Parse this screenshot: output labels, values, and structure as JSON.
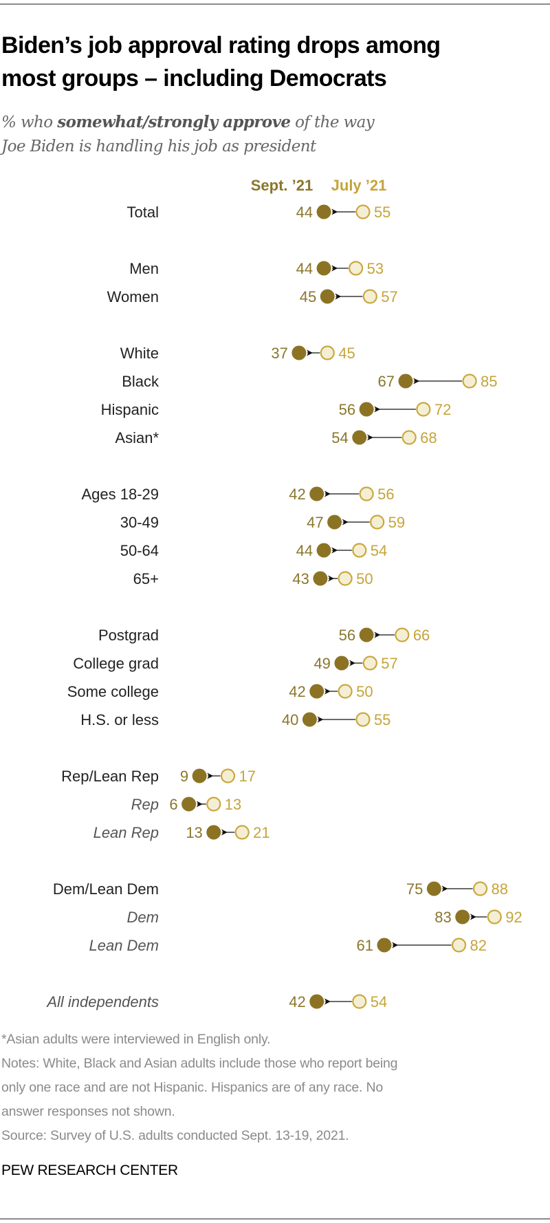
{
  "title_line1": "Biden’s job approval rating drops among",
  "title_line2": "most groups – including Democrats",
  "subtitle": {
    "pre": "% who ",
    "bold": "somewhat/strongly approve",
    "post": " of the way",
    "line2": "Joe Biden is handling his job as president"
  },
  "colors": {
    "sept": "#8c7324",
    "sept_text": "#8a762c",
    "july_fill": "#f4eed4",
    "july_stroke": "#c9a83c",
    "july_text": "#c5a43a",
    "label": "#222222"
  },
  "chart_data": {
    "type": "dot-arrow",
    "legend": [
      "Sept. ’21",
      "July ’21"
    ],
    "rows": [
      {
        "label": "Total",
        "sept": 44,
        "july": 55,
        "italic": false,
        "group": 0
      },
      {
        "label": "Men",
        "sept": 44,
        "july": 53,
        "italic": false,
        "group": 1
      },
      {
        "label": "Women",
        "sept": 45,
        "july": 57,
        "italic": false,
        "group": 1
      },
      {
        "label": "White",
        "sept": 37,
        "july": 45,
        "italic": false,
        "group": 2
      },
      {
        "label": "Black",
        "sept": 67,
        "july": 85,
        "italic": false,
        "group": 2
      },
      {
        "label": "Hispanic",
        "sept": 56,
        "july": 72,
        "italic": false,
        "group": 2
      },
      {
        "label": "Asian*",
        "sept": 54,
        "july": 68,
        "italic": false,
        "group": 2
      },
      {
        "label": "Ages 18-29",
        "sept": 42,
        "july": 56,
        "italic": false,
        "group": 3
      },
      {
        "label": "30-49",
        "sept": 47,
        "july": 59,
        "italic": false,
        "group": 3
      },
      {
        "label": "50-64",
        "sept": 44,
        "july": 54,
        "italic": false,
        "group": 3
      },
      {
        "label": "65+",
        "sept": 43,
        "july": 50,
        "italic": false,
        "group": 3
      },
      {
        "label": "Postgrad",
        "sept": 56,
        "july": 66,
        "italic": false,
        "group": 4
      },
      {
        "label": "College grad",
        "sept": 49,
        "july": 57,
        "italic": false,
        "group": 4
      },
      {
        "label": "Some college",
        "sept": 42,
        "july": 50,
        "italic": false,
        "group": 4
      },
      {
        "label": "H.S. or less",
        "sept": 40,
        "july": 55,
        "italic": false,
        "group": 4
      },
      {
        "label": "Rep/Lean Rep",
        "sept": 9,
        "july": 17,
        "italic": false,
        "group": 5
      },
      {
        "label": "Rep",
        "sept": 6,
        "july": 13,
        "italic": true,
        "group": 5
      },
      {
        "label": "Lean Rep",
        "sept": 13,
        "july": 21,
        "italic": true,
        "group": 5
      },
      {
        "label": "Dem/Lean Dem",
        "sept": 75,
        "july": 88,
        "italic": false,
        "group": 6
      },
      {
        "label": "Dem",
        "sept": 83,
        "july": 92,
        "italic": true,
        "group": 6
      },
      {
        "label": "Lean Dem",
        "sept": 61,
        "july": 82,
        "italic": true,
        "group": 6
      },
      {
        "label": "All independents",
        "sept": 42,
        "july": 54,
        "italic": true,
        "group": 7
      }
    ]
  },
  "footnotes": [
    "*Asian adults were interviewed in English only.",
    "Notes: White, Black and Asian adults include those who report being",
    "only one race and are not Hispanic. Hispanics are of any race. No",
    "answer responses not shown.",
    "Source: Survey of U.S. adults conducted Sept. 13-19, 2021."
  ],
  "brand": "PEW RESEARCH CENTER"
}
